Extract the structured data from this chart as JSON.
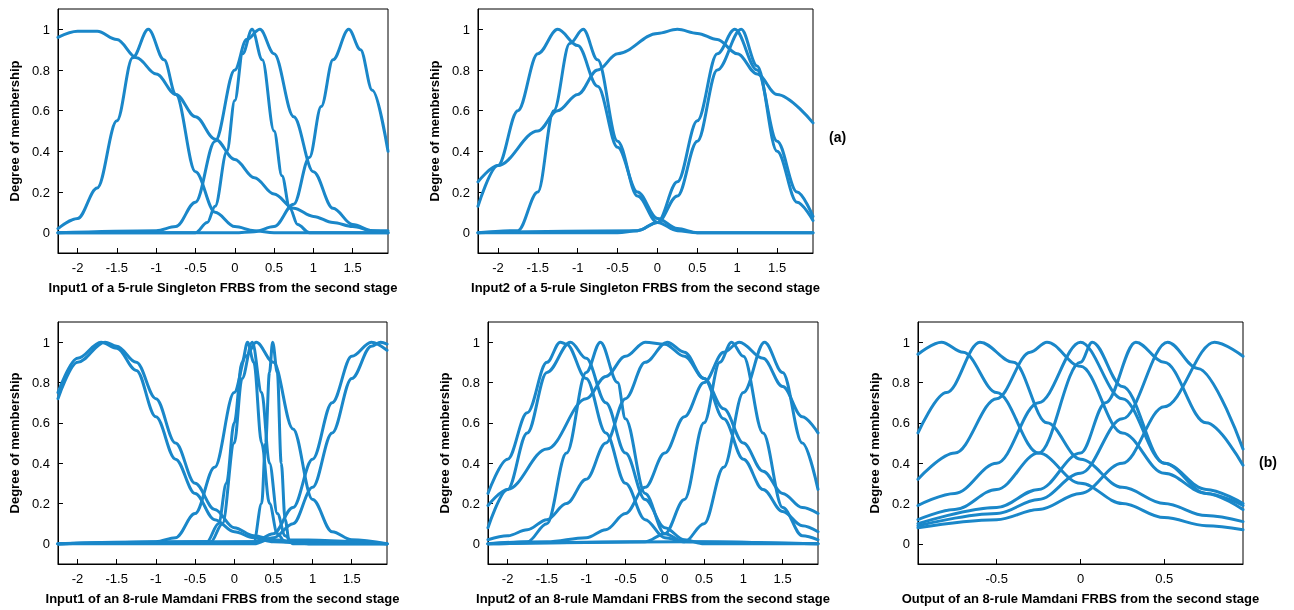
{
  "chart_data": [
    {
      "type": "line",
      "xlabel": "Input1 of a 5-rule Singleton FRBS from the second stage",
      "ylabel": "Degree of membership",
      "color": "#1a87c9",
      "marker": "none",
      "xlim": [
        -2.25,
        1.95
      ],
      "xticks": [
        -2,
        -1.5,
        -1,
        -0.5,
        0,
        0.5,
        1,
        1.5
      ],
      "ylim": [
        -0.1,
        1.1
      ],
      "yticks": [
        0,
        0.2,
        0.4,
        0.6,
        0.8,
        1
      ],
      "series": [
        {
          "x": [
            -2.25,
            -2,
            -1.75,
            -1.5,
            -1.25,
            -1,
            -0.75,
            -0.5,
            -0.25,
            0,
            0.25,
            0.5,
            0.75,
            1,
            1.25,
            1.5,
            1.75,
            1.95
          ],
          "values": [
            0.96,
            0.99,
            0.99,
            0.95,
            0.86,
            0.78,
            0.68,
            0.57,
            0.46,
            0.36,
            0.27,
            0.19,
            0.12,
            0.08,
            0.05,
            0.03,
            0.01,
            0.01
          ]
        },
        {
          "x": [
            -2.25,
            -2,
            -1.75,
            -1.5,
            -1.3,
            -1.1,
            -0.9,
            -0.75,
            -0.5,
            -0.25,
            0,
            0.25,
            0.5,
            1,
            1.95
          ],
          "values": [
            0.02,
            0.07,
            0.22,
            0.55,
            0.86,
            1,
            0.85,
            0.68,
            0.3,
            0.1,
            0.03,
            0.01,
            0,
            0,
            0
          ]
        },
        {
          "x": [
            -2.25,
            -0.5,
            -0.35,
            -0.25,
            -0.1,
            0,
            0.1,
            0.22,
            0.35,
            0.5,
            0.6,
            0.7,
            0.8,
            0.95,
            1.95
          ],
          "values": [
            0,
            0,
            0.05,
            0.13,
            0.4,
            0.65,
            0.88,
            1,
            0.85,
            0.5,
            0.28,
            0.12,
            0.04,
            0,
            0
          ]
        },
        {
          "x": [
            -2.25,
            -1,
            -0.75,
            -0.5,
            -0.25,
            0,
            0.15,
            0.32,
            0.5,
            0.75,
            1,
            1.25,
            1.5,
            1.75,
            1.95
          ],
          "values": [
            0,
            0.01,
            0.03,
            0.15,
            0.45,
            0.8,
            0.95,
            1,
            0.88,
            0.57,
            0.3,
            0.12,
            0.04,
            0.01,
            0
          ]
        },
        {
          "x": [
            -2.25,
            0,
            0.25,
            0.5,
            0.75,
            0.95,
            1.1,
            1.25,
            1.45,
            1.6,
            1.75,
            1.95
          ],
          "values": [
            0,
            0,
            0.005,
            0.03,
            0.14,
            0.37,
            0.62,
            0.85,
            1,
            0.9,
            0.7,
            0.4
          ]
        }
      ]
    },
    {
      "type": "line",
      "xlabel": "Input2 of a 5-rule Singleton FRBS from the second stage",
      "ylabel": "Degree of membership",
      "color": "#1a87c9",
      "marker": "none",
      "xlim": [
        -2.25,
        1.95
      ],
      "xticks": [
        -2,
        -1.5,
        -1,
        -0.5,
        0,
        0.5,
        1,
        1.5
      ],
      "ylim": [
        -0.1,
        1.1
      ],
      "yticks": [
        0,
        0.2,
        0.4,
        0.6,
        0.8,
        1
      ],
      "annotations": [
        "(a)"
      ],
      "series": [
        {
          "x": [
            -2.25,
            -2,
            -1.5,
            -1.25,
            -1,
            -0.75,
            -0.5,
            0,
            0.25,
            0.5,
            0.75,
            1,
            1.25,
            1.5,
            1.95
          ],
          "values": [
            0.25,
            0.33,
            0.5,
            0.6,
            0.68,
            0.8,
            0.88,
            0.98,
            1,
            0.98,
            0.95,
            0.88,
            0.78,
            0.68,
            0.54
          ]
        },
        {
          "x": [
            -2.25,
            -2,
            -1.75,
            -1.5,
            -1.25,
            -1,
            -0.75,
            -0.5,
            -0.25,
            0,
            0.25,
            0.5,
            1.95
          ],
          "values": [
            0.13,
            0.33,
            0.6,
            0.88,
            1,
            0.92,
            0.72,
            0.42,
            0.2,
            0.07,
            0.02,
            0,
            0
          ]
        },
        {
          "x": [
            -2.25,
            -1.75,
            -1.5,
            -1.3,
            -1.1,
            -0.93,
            -0.75,
            -0.5,
            -0.25,
            0,
            0.25,
            0.5,
            1.95
          ],
          "values": [
            0,
            0.01,
            0.2,
            0.6,
            0.93,
            1,
            0.85,
            0.45,
            0.18,
            0.05,
            0.01,
            0,
            0
          ]
        },
        {
          "x": [
            -2.25,
            -0.5,
            -0.25,
            0,
            0.25,
            0.5,
            0.75,
            0.97,
            1.25,
            1.5,
            1.75,
            1.95
          ],
          "values": [
            0,
            0,
            0.01,
            0.05,
            0.25,
            0.55,
            0.88,
            1,
            0.8,
            0.45,
            0.2,
            0.08
          ]
        },
        {
          "x": [
            -2.25,
            -0.25,
            0,
            0.25,
            0.5,
            0.75,
            1.05,
            1.25,
            1.5,
            1.75,
            1.95
          ],
          "values": [
            0,
            0.01,
            0.05,
            0.18,
            0.45,
            0.8,
            1,
            0.82,
            0.4,
            0.15,
            0.06
          ]
        }
      ]
    },
    {
      "type": "line",
      "xlabel": "Input1 of an 8-rule Mamdani FRBS from the second stage",
      "ylabel": "Degree of membership",
      "color": "#1a87c9",
      "marker": "none",
      "xlim": [
        -2.25,
        1.95
      ],
      "xticks": [
        -2,
        -1.5,
        -1,
        -0.5,
        0,
        0.5,
        1,
        1.5
      ],
      "ylim": [
        -0.1,
        1.1
      ],
      "yticks": [
        0,
        0.2,
        0.4,
        0.6,
        0.8,
        1
      ],
      "series": [
        {
          "x": [
            -2.25,
            -2,
            -1.7,
            -1.5,
            -1.25,
            -1,
            -0.75,
            -0.5,
            -0.25,
            0,
            0.25,
            0.5,
            1,
            1.95
          ],
          "values": [
            0.75,
            0.92,
            1,
            0.97,
            0.86,
            0.63,
            0.42,
            0.25,
            0.12,
            0.06,
            0.03,
            0.01,
            0,
            0
          ]
        },
        {
          "x": [
            -2.25,
            -2,
            -1.65,
            -1.5,
            -1.25,
            -1,
            -0.75,
            -0.5,
            -0.25,
            0,
            0.25,
            0.5,
            1,
            1.95
          ],
          "values": [
            0.72,
            0.9,
            1,
            0.98,
            0.9,
            0.72,
            0.5,
            0.3,
            0.17,
            0.08,
            0.04,
            0.02,
            0,
            0
          ]
        },
        {
          "x": [
            -2.25,
            0.25,
            0.5,
            0.75,
            1,
            1.25,
            1.5,
            1.75,
            1.95
          ],
          "values": [
            0,
            0.01,
            0.05,
            0.18,
            0.42,
            0.7,
            0.93,
            1,
            0.96
          ]
        },
        {
          "x": [
            -2.25,
            0.25,
            0.5,
            0.75,
            1,
            1.25,
            1.5,
            1.75,
            1.87,
            1.95
          ],
          "values": [
            0,
            0,
            0.03,
            0.1,
            0.28,
            0.55,
            0.82,
            0.98,
            1,
            0.99
          ]
        },
        {
          "x": [
            -2.25,
            -1,
            -0.75,
            -0.5,
            -0.25,
            0,
            0.15,
            0.28,
            0.5,
            0.75,
            1,
            1.25,
            1.5,
            1.95
          ],
          "values": [
            0,
            0.01,
            0.03,
            0.15,
            0.38,
            0.75,
            0.93,
            1,
            0.9,
            0.57,
            0.22,
            0.06,
            0.02,
            0
          ]
        },
        {
          "x": [
            -2.25,
            -0.35,
            -0.2,
            -0.1,
            0,
            0.1,
            0.17,
            0.25,
            0.35,
            0.45,
            0.55,
            0.65,
            1.95
          ],
          "values": [
            0,
            0.01,
            0.1,
            0.3,
            0.6,
            0.9,
            1,
            0.9,
            0.5,
            0.2,
            0.05,
            0.01,
            0
          ]
        },
        {
          "x": [
            -2.25,
            -0.3,
            -0.15,
            0,
            0.1,
            0.23,
            0.35,
            0.45,
            0.55,
            0.65,
            0.75,
            1.95
          ],
          "values": [
            0,
            0.01,
            0.1,
            0.5,
            0.82,
            1,
            0.75,
            0.4,
            0.15,
            0.04,
            0,
            0
          ]
        },
        {
          "x": [
            -2.25,
            0.25,
            0.35,
            0.4,
            0.45,
            0.49,
            0.55,
            0.6,
            0.65,
            0.7,
            1.95
          ],
          "values": [
            0,
            0.01,
            0.2,
            0.5,
            0.85,
            1,
            0.85,
            0.4,
            0.12,
            0.02,
            0
          ]
        }
      ]
    },
    {
      "type": "line",
      "xlabel": "Input2 of an 8-rule Mamdani FRBS from the second stage",
      "ylabel": "Degree of membership",
      "color": "#1a87c9",
      "marker": "none",
      "xlim": [
        -2.25,
        1.95
      ],
      "xticks": [
        -2,
        -1.5,
        -1,
        -0.5,
        0,
        0.5,
        1,
        1.5
      ],
      "ylim": [
        -0.1,
        1.1
      ],
      "yticks": [
        0,
        0.2,
        0.4,
        0.6,
        0.8,
        1
      ],
      "series": [
        {
          "x": [
            -2.25,
            -2,
            -1.75,
            -1.5,
            -1.33,
            -1.25,
            -1,
            -0.75,
            -0.5,
            -0.25,
            0,
            0.25,
            1.95
          ],
          "values": [
            0.25,
            0.42,
            0.65,
            0.9,
            1,
            0.99,
            0.82,
            0.55,
            0.3,
            0.12,
            0.03,
            0.01,
            0
          ]
        },
        {
          "x": [
            -2.25,
            -2,
            -1.75,
            -1.5,
            -1.2,
            -1,
            -0.75,
            -0.5,
            -0.25,
            0,
            0.25,
            0.5,
            1.95
          ],
          "values": [
            0.08,
            0.27,
            0.55,
            0.85,
            1,
            0.92,
            0.7,
            0.45,
            0.22,
            0.08,
            0.02,
            0,
            0
          ]
        },
        {
          "x": [
            -2.25,
            -2,
            -1.5,
            -1,
            -0.75,
            -0.5,
            -0.25,
            0,
            0.25,
            0.5,
            0.75,
            1,
            1.25,
            1.5,
            1.75,
            1.95
          ],
          "values": [
            0.19,
            0.27,
            0.47,
            0.72,
            0.83,
            0.93,
            1,
            0.99,
            0.93,
            0.82,
            0.67,
            0.5,
            0.36,
            0.25,
            0.18,
            0.15
          ]
        },
        {
          "x": [
            -2.25,
            -1.75,
            -1.5,
            -1.25,
            -1,
            -0.82,
            -0.6,
            -0.5,
            -0.25,
            0,
            0.25,
            1.95
          ],
          "values": [
            0,
            0.01,
            0.1,
            0.45,
            0.85,
            1,
            0.8,
            0.62,
            0.25,
            0.05,
            0.01,
            0
          ]
        },
        {
          "x": [
            -2.25,
            -2,
            -1.75,
            -1.5,
            -1.25,
            -1,
            -0.75,
            -0.5,
            -0.25,
            0.03,
            0.25,
            0.5,
            0.75,
            1,
            1.25,
            1.5,
            1.75,
            1.95
          ],
          "values": [
            0.02,
            0.04,
            0.07,
            0.12,
            0.2,
            0.32,
            0.5,
            0.72,
            0.9,
            1,
            0.95,
            0.82,
            0.62,
            0.42,
            0.27,
            0.16,
            0.09,
            0.06
          ]
        },
        {
          "x": [
            -2.25,
            -1.5,
            -1,
            -0.75,
            -0.5,
            -0.25,
            0,
            0.25,
            0.5,
            0.75,
            0.95,
            1.25,
            1.5,
            1.75,
            1.95
          ],
          "values": [
            0,
            0.01,
            0.03,
            0.07,
            0.15,
            0.28,
            0.45,
            0.63,
            0.8,
            0.95,
            1,
            0.92,
            0.78,
            0.63,
            0.55
          ]
        },
        {
          "x": [
            -2.25,
            -0.25,
            0,
            0.25,
            0.5,
            0.7,
            0.85,
            1,
            1.25,
            1.5,
            1.75,
            1.95
          ],
          "values": [
            0,
            0.01,
            0.05,
            0.22,
            0.6,
            0.9,
            1,
            0.93,
            0.55,
            0.18,
            0.04,
            0.02
          ]
        },
        {
          "x": [
            -2.25,
            0.25,
            0.5,
            0.75,
            1,
            1.27,
            1.5,
            1.75,
            1.95
          ],
          "values": [
            0,
            0.01,
            0.1,
            0.38,
            0.75,
            1,
            0.85,
            0.5,
            0.27
          ]
        }
      ]
    },
    {
      "type": "line",
      "xlabel": "Output of an 8-rule Mamdani FRBS from the second stage",
      "ylabel": "Degree of membership",
      "color": "#1a87c9",
      "marker": "none",
      "xlim": [
        -0.97,
        0.97
      ],
      "xticks": [
        -0.5,
        0,
        0.5
      ],
      "ylim": [
        -0.1,
        1.1
      ],
      "yticks": [
        0,
        0.2,
        0.4,
        0.6,
        0.8,
        1
      ],
      "annotations": [
        "(b)"
      ],
      "series": [
        {
          "x": [
            -0.97,
            -0.83,
            -0.7,
            -0.5,
            -0.25,
            0,
            0.25,
            0.5,
            0.75,
            0.97
          ],
          "values": [
            0.94,
            1,
            0.95,
            0.75,
            0.45,
            0.3,
            0.2,
            0.13,
            0.09,
            0.07
          ]
        },
        {
          "x": [
            -0.97,
            -0.8,
            -0.6,
            -0.4,
            -0.2,
            0,
            0.25,
            0.5,
            0.75,
            0.97
          ],
          "values": [
            0.55,
            0.75,
            1,
            0.9,
            0.6,
            0.42,
            0.28,
            0.2,
            0.14,
            0.11
          ]
        },
        {
          "x": [
            -0.97,
            -0.75,
            -0.5,
            -0.3,
            -0.2,
            0,
            0.25,
            0.5,
            0.75,
            0.97
          ],
          "values": [
            0.32,
            0.45,
            0.72,
            0.95,
            1,
            0.88,
            0.55,
            0.35,
            0.25,
            0.19
          ]
        },
        {
          "x": [
            -0.97,
            -0.75,
            -0.5,
            -0.25,
            0,
            0.25,
            0.5,
            0.75,
            0.97
          ],
          "values": [
            0.19,
            0.25,
            0.4,
            0.7,
            1,
            0.72,
            0.4,
            0.27,
            0.2
          ]
        },
        {
          "x": [
            -0.97,
            -0.75,
            -0.5,
            -0.25,
            0,
            0.07,
            0.25,
            0.5,
            0.75,
            0.97
          ],
          "values": [
            0.12,
            0.17,
            0.27,
            0.45,
            0.9,
            1,
            0.78,
            0.4,
            0.25,
            0.17
          ]
        },
        {
          "x": [
            -0.97,
            -0.5,
            -0.25,
            0,
            0.15,
            0.33,
            0.5,
            0.75,
            0.97
          ],
          "values": [
            0.1,
            0.18,
            0.27,
            0.45,
            0.7,
            1,
            0.9,
            0.6,
            0.39
          ]
        },
        {
          "x": [
            -0.97,
            -0.5,
            -0.25,
            0,
            0.25,
            0.52,
            0.7,
            0.97
          ],
          "values": [
            0.09,
            0.15,
            0.22,
            0.35,
            0.62,
            1,
            0.87,
            0.47
          ]
        },
        {
          "x": [
            -0.97,
            -0.5,
            -0.25,
            0,
            0.25,
            0.5,
            0.8,
            0.97
          ],
          "values": [
            0.08,
            0.12,
            0.17,
            0.25,
            0.4,
            0.68,
            1,
            0.93
          ]
        }
      ]
    }
  ]
}
